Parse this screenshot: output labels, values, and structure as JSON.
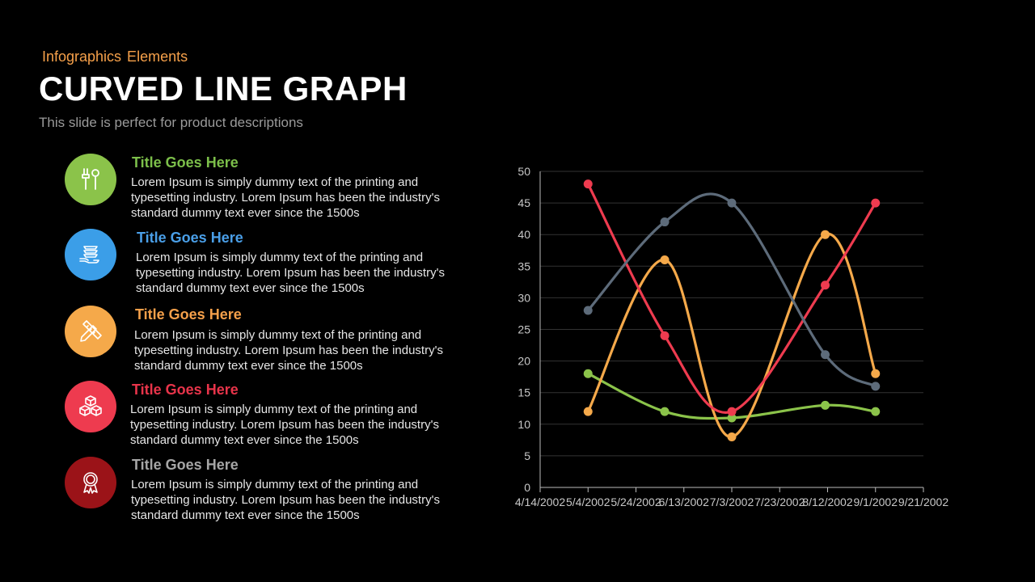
{
  "header": {
    "kicker": "Infographics  Elements",
    "title": "CURVED LINE GRAPH",
    "subtitle": "This slide is perfect for product descriptions"
  },
  "items": [
    {
      "title": "Title Goes Here",
      "text": "Lorem Ipsum is simply dummy text of the printing and typesetting industry. Lorem Ipsum has been the industry's standard dummy text ever since the 1500s",
      "color": "#8bc34a",
      "title_color": "#7cbf4a",
      "icon": "tools-icon"
    },
    {
      "title": "Title Goes Here",
      "text": "Lorem Ipsum is simply dummy text of the printing and typesetting industry. Lorem Ipsum has been the industry's standard dummy text ever since the 1500s",
      "color": "#3b9ee8",
      "title_color": "#4a9fe8",
      "icon": "hand-stack-icon"
    },
    {
      "title": "Title Goes Here",
      "text": "Lorem Ipsum is simply dummy text of the printing and typesetting industry. Lorem Ipsum has been the industry's standard dummy text ever since the 1500s",
      "color": "#f5a94a",
      "title_color": "#f5a04a",
      "icon": "pencil-ruler-icon"
    },
    {
      "title": "Title Goes Here",
      "text": "Lorem Ipsum is simply dummy text of the printing and typesetting industry. Lorem Ipsum has been the industry's standard dummy text ever since the 1500s",
      "color": "#ee3b4f",
      "title_color": "#e8344a",
      "icon": "cubes-icon"
    },
    {
      "title": "Title Goes Here",
      "text": "Lorem Ipsum is simply dummy text of the printing and typesetting industry. Lorem Ipsum has been the industry's standard dummy text ever since the 1500s",
      "color": "#9b1318",
      "title_color": "#a6a6a6",
      "icon": "award-icon"
    }
  ],
  "chart_data": {
    "type": "line",
    "ylim": [
      0,
      50
    ],
    "yticks": [
      0,
      5,
      10,
      15,
      20,
      25,
      30,
      35,
      40,
      45,
      50
    ],
    "xticks": [
      "4/14/2002",
      "5/4/2002",
      "5/24/2002",
      "6/13/2002",
      "7/3/2002",
      "7/23/2002",
      "8/12/2002",
      "9/1/2002",
      "9/21/2002"
    ],
    "x_dates": [
      "2002-05-04",
      "2002-06-05",
      "2002-07-03",
      "2002-08-11",
      "2002-09-01"
    ],
    "grid": true,
    "smooth": true,
    "series": [
      {
        "color": "#8bc34a",
        "values": [
          18,
          12,
          11,
          13,
          12
        ]
      },
      {
        "color": "#f5a94a",
        "values": [
          12,
          36,
          8,
          40,
          18
        ]
      },
      {
        "color": "#ee3b4f",
        "values": [
          48,
          24,
          12,
          32,
          45
        ]
      },
      {
        "color": "#5d6b7a",
        "values": [
          28,
          42,
          45,
          21,
          16
        ]
      }
    ]
  }
}
